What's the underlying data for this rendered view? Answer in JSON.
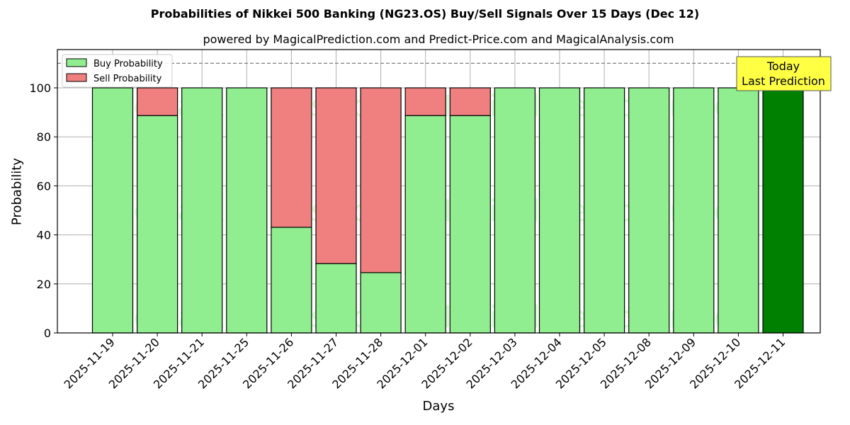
{
  "chart_data": {
    "type": "bar",
    "stacked": true,
    "title": "Probabilities of Nikkei 500 Banking (NG23.OS) Buy/Sell Signals Over 15 Days (Dec 12)",
    "subtitle": "powered by MagicalPrediction.com and Predict-Price.com and MagicalAnalysis.com",
    "xlabel": "Days",
    "ylabel": "Probability",
    "ylim": [
      0,
      115
    ],
    "yticks": [
      0,
      20,
      40,
      60,
      80,
      100
    ],
    "grid": true,
    "legend_position": "upper left",
    "reference_line": 110,
    "categories": [
      "2025-11-19",
      "2025-11-20",
      "2025-11-21",
      "2025-11-25",
      "2025-11-26",
      "2025-11-27",
      "2025-11-28",
      "2025-12-01",
      "2025-12-02",
      "2025-12-03",
      "2025-12-04",
      "2025-12-05",
      "2025-12-08",
      "2025-12-09",
      "2025-12-10",
      "2025-12-11"
    ],
    "series": [
      {
        "name": "Buy Probability",
        "color": "#90ee90",
        "values": [
          100,
          88.7,
          100,
          100,
          43.1,
          28.3,
          24.6,
          88.7,
          88.7,
          100,
          100,
          100,
          100,
          100,
          100,
          100
        ]
      },
      {
        "name": "Sell Probability",
        "color": "#f08080",
        "values": [
          0,
          11.3,
          0,
          0,
          56.9,
          71.7,
          75.4,
          11.3,
          11.3,
          0,
          0,
          0,
          0,
          0,
          0,
          0
        ]
      }
    ],
    "highlight": {
      "index": 15,
      "color": "#008000",
      "annotation": [
        "Today",
        "Last Prediction"
      ]
    },
    "watermarks": [
      "MagicalAnalysis.com",
      "MagicalPrediction.com"
    ]
  }
}
